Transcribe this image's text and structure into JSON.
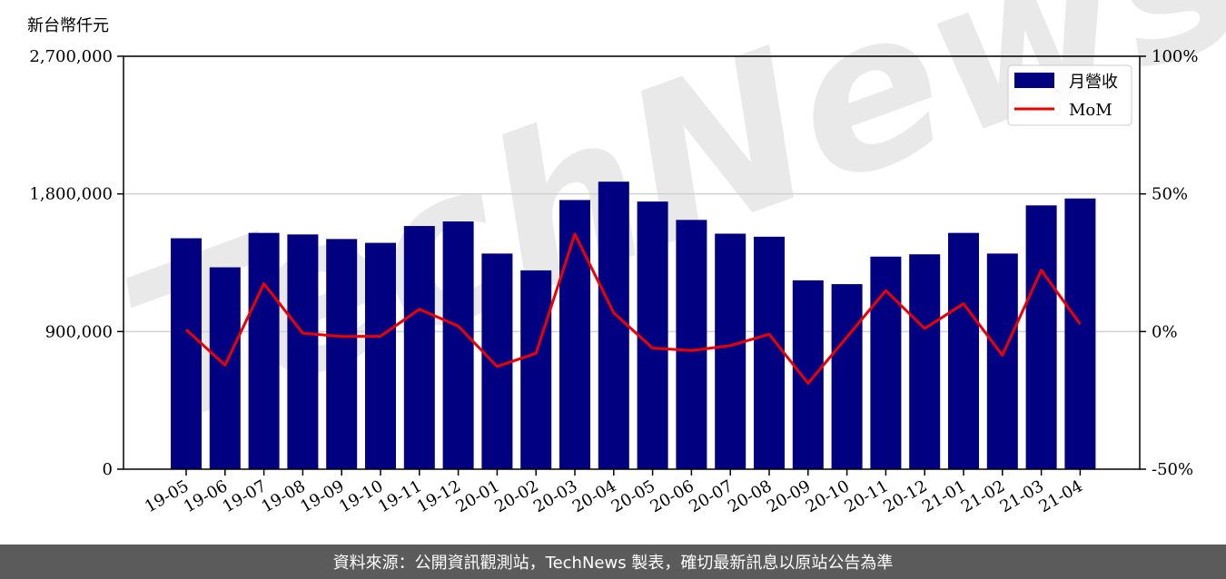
{
  "chart_data": {
    "type": "bar",
    "left_unit_label": "新台幣仟元",
    "categories": [
      "19-05",
      "19-06",
      "19-07",
      "19-08",
      "19-09",
      "19-10",
      "19-11",
      "19-12",
      "20-01",
      "20-02",
      "20-03",
      "20-04",
      "20-05",
      "20-06",
      "20-07",
      "20-08",
      "20-09",
      "20-10",
      "20-11",
      "20-12",
      "21-01",
      "21-02",
      "21-03",
      "21-04"
    ],
    "series": [
      {
        "name": "月營收",
        "type": "bar",
        "axis": "left",
        "color": "#000080",
        "values": [
          1510000,
          1320000,
          1545000,
          1535000,
          1505000,
          1480000,
          1590000,
          1620000,
          1410000,
          1300000,
          1760000,
          1880000,
          1750000,
          1630000,
          1540000,
          1520000,
          1235000,
          1210000,
          1390000,
          1405000,
          1545000,
          1410000,
          1725000,
          1770000
        ]
      },
      {
        "name": "MoM",
        "type": "line",
        "axis": "right",
        "color": "#ee0000",
        "values": [
          0.7,
          -12.2,
          17.4,
          -0.6,
          -1.8,
          -1.7,
          8.1,
          2.0,
          -12.7,
          -7.9,
          35.4,
          6.8,
          -6.0,
          -6.9,
          -5.1,
          -1.0,
          -18.8,
          -2.0,
          14.9,
          1.1,
          10.1,
          -8.6,
          22.3,
          2.7
        ]
      }
    ],
    "left_axis": {
      "min": 0,
      "max": 2700000,
      "ticks": [
        "0",
        "900,000",
        "1,800,000",
        "2,700,000"
      ]
    },
    "right_axis": {
      "min": -50,
      "max": 100,
      "ticks": [
        "-50%",
        "0%",
        "50%",
        "100%"
      ]
    },
    "grid": "horizontal",
    "legend_position": "top-right"
  },
  "watermark": "TechNews",
  "footer": {
    "source_text": "資料來源：公開資訊觀測站，TechNews 製表，確切最新訊息以原站公告為準"
  }
}
